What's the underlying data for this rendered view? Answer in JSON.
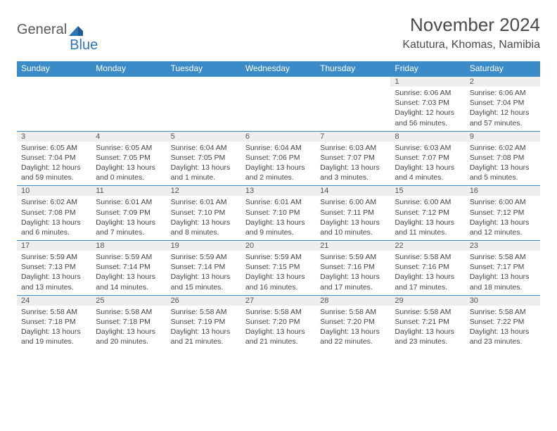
{
  "logo": {
    "text1": "General",
    "text2": "Blue"
  },
  "title": "November 2024",
  "location": "Katutura, Khomas, Namibia",
  "colors": {
    "header_bg": "#3b8bc9",
    "header_text": "#ffffff",
    "daynum_bg": "#eeeeee",
    "border": "#3b8bc9",
    "logo_gray": "#5a5a5a",
    "logo_blue": "#2e75b6",
    "body_text": "#444444"
  },
  "daynames": [
    "Sunday",
    "Monday",
    "Tuesday",
    "Wednesday",
    "Thursday",
    "Friday",
    "Saturday"
  ],
  "weeks": [
    [
      null,
      null,
      null,
      null,
      null,
      {
        "n": "1",
        "sr": "6:06 AM",
        "ss": "7:03 PM",
        "dl": "12 hours and 56 minutes."
      },
      {
        "n": "2",
        "sr": "6:06 AM",
        "ss": "7:04 PM",
        "dl": "12 hours and 57 minutes."
      }
    ],
    [
      {
        "n": "3",
        "sr": "6:05 AM",
        "ss": "7:04 PM",
        "dl": "12 hours and 59 minutes."
      },
      {
        "n": "4",
        "sr": "6:05 AM",
        "ss": "7:05 PM",
        "dl": "13 hours and 0 minutes."
      },
      {
        "n": "5",
        "sr": "6:04 AM",
        "ss": "7:05 PM",
        "dl": "13 hours and 1 minute."
      },
      {
        "n": "6",
        "sr": "6:04 AM",
        "ss": "7:06 PM",
        "dl": "13 hours and 2 minutes."
      },
      {
        "n": "7",
        "sr": "6:03 AM",
        "ss": "7:07 PM",
        "dl": "13 hours and 3 minutes."
      },
      {
        "n": "8",
        "sr": "6:03 AM",
        "ss": "7:07 PM",
        "dl": "13 hours and 4 minutes."
      },
      {
        "n": "9",
        "sr": "6:02 AM",
        "ss": "7:08 PM",
        "dl": "13 hours and 5 minutes."
      }
    ],
    [
      {
        "n": "10",
        "sr": "6:02 AM",
        "ss": "7:08 PM",
        "dl": "13 hours and 6 minutes."
      },
      {
        "n": "11",
        "sr": "6:01 AM",
        "ss": "7:09 PM",
        "dl": "13 hours and 7 minutes."
      },
      {
        "n": "12",
        "sr": "6:01 AM",
        "ss": "7:10 PM",
        "dl": "13 hours and 8 minutes."
      },
      {
        "n": "13",
        "sr": "6:01 AM",
        "ss": "7:10 PM",
        "dl": "13 hours and 9 minutes."
      },
      {
        "n": "14",
        "sr": "6:00 AM",
        "ss": "7:11 PM",
        "dl": "13 hours and 10 minutes."
      },
      {
        "n": "15",
        "sr": "6:00 AM",
        "ss": "7:12 PM",
        "dl": "13 hours and 11 minutes."
      },
      {
        "n": "16",
        "sr": "6:00 AM",
        "ss": "7:12 PM",
        "dl": "13 hours and 12 minutes."
      }
    ],
    [
      {
        "n": "17",
        "sr": "5:59 AM",
        "ss": "7:13 PM",
        "dl": "13 hours and 13 minutes."
      },
      {
        "n": "18",
        "sr": "5:59 AM",
        "ss": "7:14 PM",
        "dl": "13 hours and 14 minutes."
      },
      {
        "n": "19",
        "sr": "5:59 AM",
        "ss": "7:14 PM",
        "dl": "13 hours and 15 minutes."
      },
      {
        "n": "20",
        "sr": "5:59 AM",
        "ss": "7:15 PM",
        "dl": "13 hours and 16 minutes."
      },
      {
        "n": "21",
        "sr": "5:59 AM",
        "ss": "7:16 PM",
        "dl": "13 hours and 17 minutes."
      },
      {
        "n": "22",
        "sr": "5:58 AM",
        "ss": "7:16 PM",
        "dl": "13 hours and 17 minutes."
      },
      {
        "n": "23",
        "sr": "5:58 AM",
        "ss": "7:17 PM",
        "dl": "13 hours and 18 minutes."
      }
    ],
    [
      {
        "n": "24",
        "sr": "5:58 AM",
        "ss": "7:18 PM",
        "dl": "13 hours and 19 minutes."
      },
      {
        "n": "25",
        "sr": "5:58 AM",
        "ss": "7:18 PM",
        "dl": "13 hours and 20 minutes."
      },
      {
        "n": "26",
        "sr": "5:58 AM",
        "ss": "7:19 PM",
        "dl": "13 hours and 21 minutes."
      },
      {
        "n": "27",
        "sr": "5:58 AM",
        "ss": "7:20 PM",
        "dl": "13 hours and 21 minutes."
      },
      {
        "n": "28",
        "sr": "5:58 AM",
        "ss": "7:20 PM",
        "dl": "13 hours and 22 minutes."
      },
      {
        "n": "29",
        "sr": "5:58 AM",
        "ss": "7:21 PM",
        "dl": "13 hours and 23 minutes."
      },
      {
        "n": "30",
        "sr": "5:58 AM",
        "ss": "7:22 PM",
        "dl": "13 hours and 23 minutes."
      }
    ]
  ],
  "labels": {
    "sunrise": "Sunrise:",
    "sunset": "Sunset:",
    "daylight": "Daylight:"
  }
}
